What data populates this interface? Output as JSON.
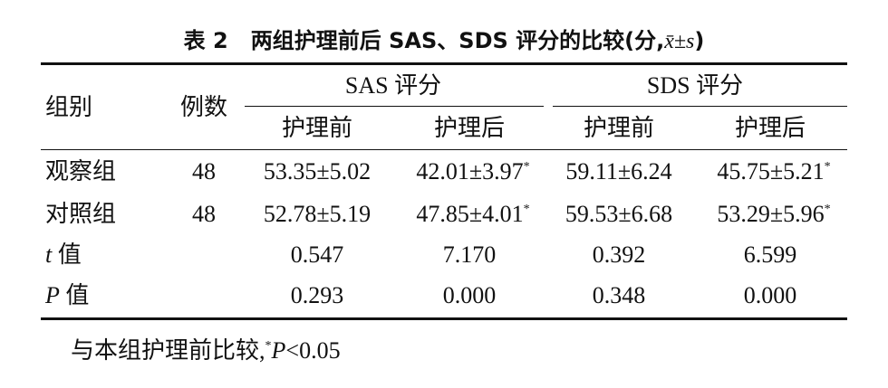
{
  "title": {
    "label": "表 2",
    "text": "两组护理前后 SAS、SDS 评分的比较(分,",
    "stat": "x̄±s",
    "close": ")"
  },
  "table": {
    "header": {
      "group": "组别",
      "count": "例数",
      "sas": "SAS 评分",
      "sds": "SDS 评分",
      "sub": [
        "护理前",
        "护理后",
        "护理前",
        "护理后"
      ]
    },
    "rows": [
      {
        "group": "观察组",
        "count": "48",
        "cells": [
          {
            "value": "53.35±5.02"
          },
          {
            "value": "42.01±3.97",
            "mark": "*"
          },
          {
            "value": "59.11±6.24"
          },
          {
            "value": "45.75±5.21",
            "mark": "*"
          }
        ]
      },
      {
        "group": "对照组",
        "count": "48",
        "cells": [
          {
            "value": "52.78±5.19"
          },
          {
            "value": "47.85±4.01",
            "mark": "*"
          },
          {
            "value": "59.53±6.68"
          },
          {
            "value": "53.29±5.96",
            "mark": "*"
          }
        ]
      },
      {
        "group": {
          "symbol": "t",
          "text": " 值"
        },
        "cells": [
          {
            "value": "0.547"
          },
          {
            "value": "7.170"
          },
          {
            "value": "0.392"
          },
          {
            "value": "6.599"
          }
        ]
      },
      {
        "group": {
          "symbol": "P",
          "text": " 值"
        },
        "cells": [
          {
            "value": "0.293"
          },
          {
            "value": "0.000"
          },
          {
            "value": "0.348"
          },
          {
            "value": "0.000"
          }
        ]
      }
    ]
  },
  "footnote": {
    "text": "与本组护理前比较,",
    "mark": "*",
    "symbol": "P",
    "condition": "<0.05"
  }
}
